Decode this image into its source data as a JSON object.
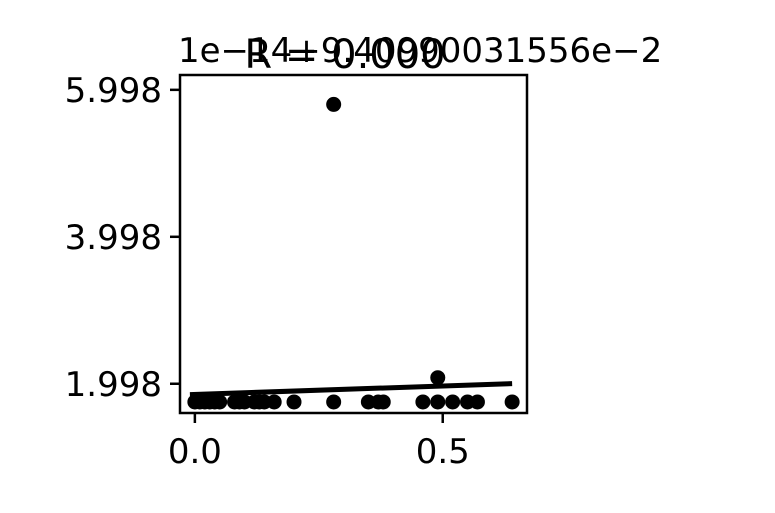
{
  "chart_data": {
    "type": "scatter",
    "title": "R = 0.000",
    "y_offset_text": "1e−14+9.40990031556e−2",
    "xlim": [
      -0.03,
      0.67
    ],
    "ylim": [
      1.6,
      6.2
    ],
    "x_ticks": [
      0.0,
      0.5
    ],
    "x_tick_labels": [
      "0.0",
      "0.5"
    ],
    "y_ticks": [
      1.998,
      3.998,
      5.998
    ],
    "y_tick_labels": [
      "1.998",
      "3.998",
      "5.998"
    ],
    "grid": false,
    "points": [
      {
        "x": 0.0,
        "y": 1.75
      },
      {
        "x": 0.01,
        "y": 1.75
      },
      {
        "x": 0.02,
        "y": 1.75
      },
      {
        "x": 0.03,
        "y": 1.75
      },
      {
        "x": 0.04,
        "y": 1.75
      },
      {
        "x": 0.05,
        "y": 1.75
      },
      {
        "x": 0.08,
        "y": 1.75
      },
      {
        "x": 0.09,
        "y": 1.75
      },
      {
        "x": 0.1,
        "y": 1.75
      },
      {
        "x": 0.12,
        "y": 1.75
      },
      {
        "x": 0.13,
        "y": 1.75
      },
      {
        "x": 0.14,
        "y": 1.75
      },
      {
        "x": 0.16,
        "y": 1.75
      },
      {
        "x": 0.2,
        "y": 1.75
      },
      {
        "x": 0.28,
        "y": 1.75
      },
      {
        "x": 0.35,
        "y": 1.75
      },
      {
        "x": 0.37,
        "y": 1.75
      },
      {
        "x": 0.38,
        "y": 1.75
      },
      {
        "x": 0.46,
        "y": 1.75
      },
      {
        "x": 0.49,
        "y": 1.75
      },
      {
        "x": 0.52,
        "y": 1.75
      },
      {
        "x": 0.55,
        "y": 1.75
      },
      {
        "x": 0.57,
        "y": 1.75
      },
      {
        "x": 0.64,
        "y": 1.75
      },
      {
        "x": 0.49,
        "y": 2.08
      },
      {
        "x": 0.28,
        "y": 5.8
      }
    ],
    "fit_line": {
      "x": [
        -0.01,
        0.64
      ],
      "y": [
        1.85,
        2.0
      ]
    },
    "marker_color": "#000000",
    "line_color": "#000000"
  }
}
